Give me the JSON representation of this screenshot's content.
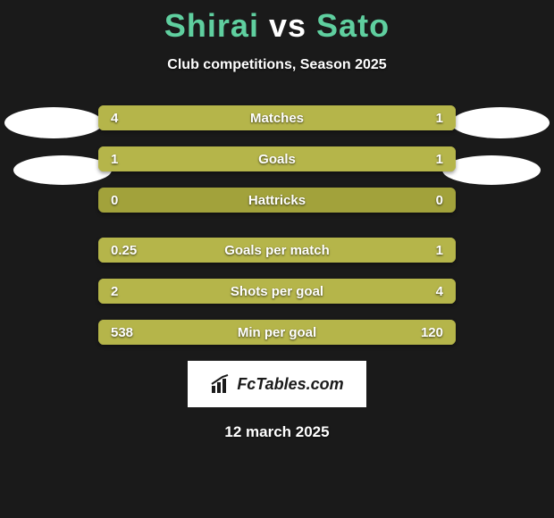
{
  "title": {
    "p1": "Shirai",
    "vs": "vs",
    "p2": "Sato"
  },
  "subtitle": "Club competitions, Season 2025",
  "colors": {
    "bar_base": "#a2a23b",
    "bar_segment": "#b5b54a",
    "background": "#1a1a1a",
    "accent_text": "#5fcf9f",
    "text": "#ffffff"
  },
  "bar_fontsize": 15,
  "title_fontsize": 36,
  "rows": [
    {
      "label": "Matches",
      "left": "4",
      "right": "1",
      "left_pct": 80,
      "right_pct": 20,
      "group": 1
    },
    {
      "label": "Goals",
      "left": "1",
      "right": "1",
      "left_pct": 50,
      "right_pct": 50,
      "group": 1
    },
    {
      "label": "Hattricks",
      "left": "0",
      "right": "0",
      "left_pct": 0,
      "right_pct": 0,
      "group": 1
    },
    {
      "label": "Goals per match",
      "left": "0.25",
      "right": "1",
      "left_pct": 20,
      "right_pct": 80,
      "group": 2
    },
    {
      "label": "Shots per goal",
      "left": "2",
      "right": "4",
      "left_pct": 33,
      "right_pct": 67,
      "group": 2
    },
    {
      "label": "Min per goal",
      "left": "538",
      "right": "120",
      "left_pct": 82,
      "right_pct": 18,
      "group": 2
    }
  ],
  "watermark": "FcTables.com",
  "date": "12 march 2025"
}
